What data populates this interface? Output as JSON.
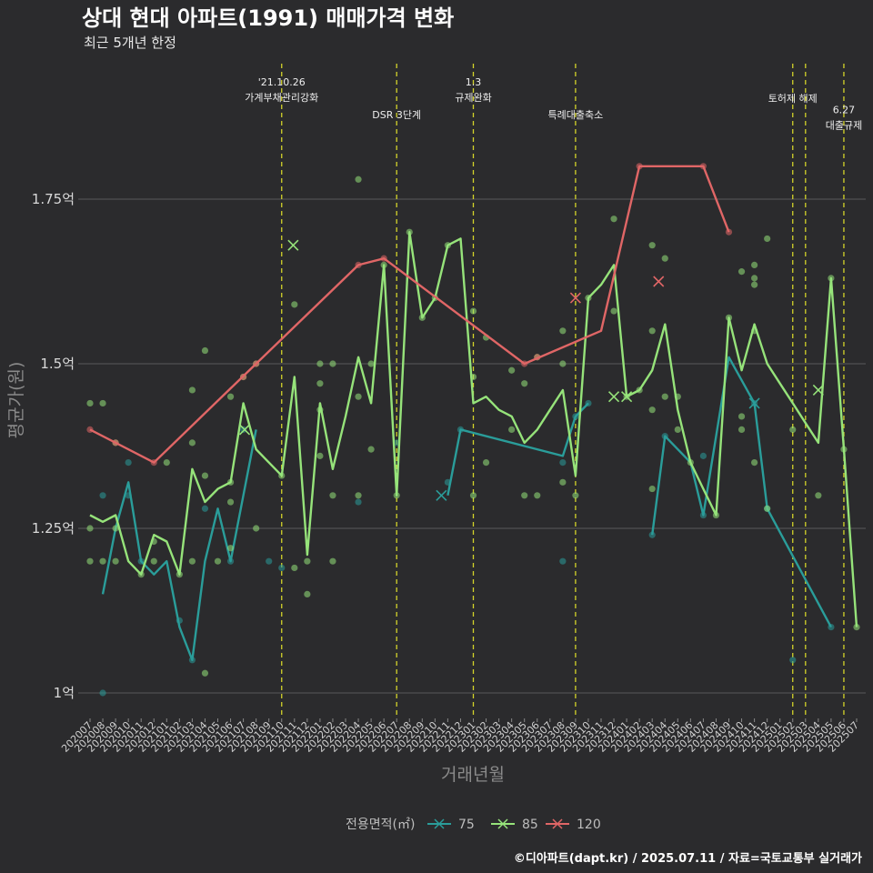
{
  "title": "상대 현대 아파트(1991) 매매가격 변화",
  "subtitle": "최근 5개년 한정",
  "caption": "©디아파트(dapt.kr) / 2025.07.11 / 자료=국토교통부 실거래가",
  "chart_data": {
    "type": "line",
    "xlabel": "거래년월",
    "ylabel": "평균가(원)",
    "ylim": [
      0.96,
      1.86
    ],
    "yticks": [
      1.0,
      1.25,
      1.5,
      1.75
    ],
    "ytick_labels": [
      "1억",
      "1.25억",
      "1.5억",
      "1.75억"
    ],
    "grid": true,
    "legend_position": "bottom",
    "legend_title": "전용면적(㎡)",
    "categories": [
      "202007",
      "202008",
      "202009",
      "202010",
      "202011",
      "202012",
      "202101",
      "202102",
      "202103",
      "202104",
      "202105",
      "202106",
      "202107",
      "202108",
      "202109",
      "202110",
      "202111",
      "202112",
      "202201",
      "202202",
      "202203",
      "202204",
      "202205",
      "202206",
      "202207",
      "202208",
      "202209",
      "202210",
      "202211",
      "202212",
      "202301",
      "202302",
      "202303",
      "202304",
      "202305",
      "202306",
      "202307",
      "202308",
      "202309",
      "202310",
      "202311",
      "202312",
      "202401",
      "202402",
      "202403",
      "202404",
      "202405",
      "202406",
      "202407",
      "202408",
      "202409",
      "202410",
      "202411",
      "202412",
      "202501",
      "202502",
      "202503",
      "202504",
      "202505",
      "202506",
      "202507"
    ],
    "series": [
      {
        "name": "75",
        "color": "#2a9d9a",
        "line": [
          [
            0,
            null
          ],
          [
            1,
            1.15
          ],
          [
            2,
            1.25
          ],
          [
            3,
            1.32
          ],
          [
            4,
            1.2
          ],
          [
            5,
            1.18
          ],
          [
            6,
            1.2
          ],
          [
            7,
            1.1
          ],
          [
            8,
            1.05
          ],
          [
            9,
            1.2
          ],
          [
            10,
            1.28
          ],
          [
            11,
            1.2
          ],
          [
            12,
            1.3
          ],
          [
            13,
            1.4
          ],
          [
            14,
            null
          ],
          [
            15,
            null
          ],
          [
            16,
            1.21
          ],
          [
            17,
            null
          ],
          [
            18,
            null
          ],
          [
            19,
            null
          ],
          [
            20,
            null
          ],
          [
            21,
            1.29
          ],
          [
            22,
            null
          ],
          [
            23,
            null
          ],
          [
            24,
            1.38
          ],
          [
            25,
            null
          ],
          [
            26,
            null
          ],
          [
            27,
            null
          ],
          [
            28,
            1.3
          ],
          [
            29,
            1.4
          ],
          [
            37,
            1.36
          ],
          [
            38,
            1.42
          ],
          [
            39,
            1.44
          ],
          [
            43,
            null
          ],
          [
            44,
            1.24
          ],
          [
            45,
            1.39
          ],
          [
            47,
            1.35
          ],
          [
            48,
            1.27
          ],
          [
            50,
            1.51
          ],
          [
            52,
            1.44
          ],
          [
            53,
            1.28
          ],
          [
            58,
            1.1
          ]
        ],
        "points": [
          [
            1,
            1.3
          ],
          [
            1,
            1.0
          ],
          [
            3,
            1.35
          ],
          [
            3,
            1.3
          ],
          [
            4,
            1.2
          ],
          [
            7,
            1.11
          ],
          [
            8,
            1.05
          ],
          [
            9,
            1.28
          ],
          [
            11,
            1.2
          ],
          [
            12,
            1.4
          ],
          [
            14,
            1.2
          ],
          [
            15,
            1.19
          ],
          [
            21,
            1.29
          ],
          [
            24,
            1.38
          ],
          [
            28,
            1.32
          ],
          [
            29,
            1.4
          ],
          [
            37,
            1.2
          ],
          [
            37,
            1.35
          ],
          [
            38,
            1.42
          ],
          [
            39,
            1.44
          ],
          [
            44,
            1.24
          ],
          [
            45,
            1.39
          ],
          [
            48,
            1.27
          ],
          [
            48,
            1.36
          ],
          [
            52,
            1.44
          ],
          [
            53,
            1.28
          ],
          [
            55,
            1.05
          ],
          [
            58,
            1.1
          ]
        ],
        "crosses": [
          [
            27.5,
            1.3
          ],
          [
            52,
            1.44
          ]
        ]
      },
      {
        "name": "85",
        "color": "#96e37a",
        "line": [
          [
            0,
            1.27
          ],
          [
            1,
            1.26
          ],
          [
            2,
            1.27
          ],
          [
            3,
            1.2
          ],
          [
            4,
            1.18
          ],
          [
            5,
            1.24
          ],
          [
            6,
            1.23
          ],
          [
            7,
            1.18
          ],
          [
            8,
            1.34
          ],
          [
            9,
            1.29
          ],
          [
            10,
            1.31
          ],
          [
            11,
            1.32
          ],
          [
            12,
            1.44
          ],
          [
            13,
            1.37
          ],
          [
            14,
            1.35
          ],
          [
            15,
            1.33
          ],
          [
            16,
            1.48
          ],
          [
            17,
            1.21
          ],
          [
            18,
            1.44
          ],
          [
            19,
            1.34
          ],
          [
            20,
            1.42
          ],
          [
            21,
            1.51
          ],
          [
            22,
            1.44
          ],
          [
            23,
            1.65
          ],
          [
            24,
            1.3
          ],
          [
            25,
            1.7
          ],
          [
            26,
            1.57
          ],
          [
            27,
            1.6
          ],
          [
            28,
            1.68
          ],
          [
            29,
            1.69
          ],
          [
            30,
            1.44
          ],
          [
            31,
            1.45
          ],
          [
            32,
            1.43
          ],
          [
            33,
            1.42
          ],
          [
            34,
            1.38
          ],
          [
            35,
            1.4
          ],
          [
            36,
            1.43
          ],
          [
            37,
            1.46
          ],
          [
            38,
            1.33
          ],
          [
            39,
            1.6
          ],
          [
            40,
            1.62
          ],
          [
            41,
            1.65
          ],
          [
            42,
            1.45
          ],
          [
            43,
            1.46
          ],
          [
            44,
            1.49
          ],
          [
            45,
            1.56
          ],
          [
            46,
            1.43
          ],
          [
            47,
            1.35
          ],
          [
            48,
            1.31
          ],
          [
            49,
            1.27
          ],
          [
            50,
            1.57
          ],
          [
            51,
            1.49
          ],
          [
            52,
            1.56
          ],
          [
            53,
            1.5
          ],
          [
            54,
            1.47
          ],
          [
            55,
            1.44
          ],
          [
            56,
            1.41
          ],
          [
            57,
            1.38
          ],
          [
            58,
            1.63
          ],
          [
            59,
            1.37
          ],
          [
            60,
            1.1
          ]
        ],
        "points": [
          [
            0,
            1.44
          ],
          [
            0,
            1.25
          ],
          [
            0,
            1.2
          ],
          [
            1,
            1.44
          ],
          [
            1,
            1.2
          ],
          [
            2,
            1.2
          ],
          [
            2,
            1.25
          ],
          [
            2,
            1.38
          ],
          [
            4,
            1.18
          ],
          [
            5,
            1.23
          ],
          [
            5,
            1.2
          ],
          [
            6,
            1.35
          ],
          [
            7,
            1.18
          ],
          [
            8,
            1.46
          ],
          [
            8,
            1.38
          ],
          [
            8,
            1.2
          ],
          [
            9,
            1.52
          ],
          [
            9,
            1.33
          ],
          [
            9,
            1.03
          ],
          [
            10,
            1.2
          ],
          [
            11,
            1.45
          ],
          [
            11,
            1.32
          ],
          [
            11,
            1.22
          ],
          [
            11,
            1.29
          ],
          [
            12,
            1.48
          ],
          [
            13,
            1.5
          ],
          [
            13,
            1.25
          ],
          [
            15,
            1.33
          ],
          [
            16,
            1.59
          ],
          [
            16,
            1.19
          ],
          [
            17,
            1.2
          ],
          [
            17,
            1.15
          ],
          [
            18,
            1.5
          ],
          [
            18,
            1.47
          ],
          [
            18,
            1.43
          ],
          [
            18,
            1.36
          ],
          [
            19,
            1.3
          ],
          [
            19,
            1.2
          ],
          [
            19,
            1.5
          ],
          [
            21,
            1.45
          ],
          [
            21,
            1.3
          ],
          [
            21,
            1.78
          ],
          [
            22,
            1.5
          ],
          [
            22,
            1.37
          ],
          [
            23,
            1.65
          ],
          [
            24,
            1.3
          ],
          [
            25,
            1.7
          ],
          [
            26,
            1.57
          ],
          [
            27,
            1.6
          ],
          [
            28,
            1.68
          ],
          [
            30,
            1.58
          ],
          [
            30,
            1.48
          ],
          [
            30,
            1.3
          ],
          [
            31,
            1.35
          ],
          [
            31,
            1.54
          ],
          [
            33,
            1.49
          ],
          [
            33,
            1.4
          ],
          [
            34,
            1.47
          ],
          [
            34,
            1.3
          ],
          [
            35,
            1.51
          ],
          [
            35,
            1.3
          ],
          [
            37,
            1.55
          ],
          [
            37,
            1.5
          ],
          [
            37,
            1.32
          ],
          [
            38,
            1.3
          ],
          [
            39,
            1.6
          ],
          [
            41,
            1.72
          ],
          [
            41,
            1.58
          ],
          [
            42,
            1.45
          ],
          [
            43,
            1.46
          ],
          [
            44,
            1.68
          ],
          [
            44,
            1.55
          ],
          [
            44,
            1.43
          ],
          [
            44,
            1.31
          ],
          [
            45,
            1.66
          ],
          [
            45,
            1.45
          ],
          [
            46,
            1.45
          ],
          [
            46,
            1.4
          ],
          [
            47,
            1.35
          ],
          [
            49,
            1.27
          ],
          [
            50,
            1.57
          ],
          [
            51,
            1.64
          ],
          [
            51,
            1.42
          ],
          [
            51,
            1.4
          ],
          [
            52,
            1.65
          ],
          [
            52,
            1.63
          ],
          [
            52,
            1.62
          ],
          [
            52,
            1.55
          ],
          [
            52,
            1.35
          ],
          [
            53,
            1.69
          ],
          [
            53,
            1.28
          ],
          [
            55,
            1.4
          ],
          [
            57,
            1.3
          ],
          [
            58,
            1.63
          ],
          [
            59,
            1.37
          ],
          [
            60,
            1.1
          ]
        ],
        "crosses": [
          [
            15.9,
            1.68
          ],
          [
            12.1,
            1.4
          ],
          [
            41,
            1.45
          ],
          [
            42,
            1.45
          ],
          [
            57,
            1.46
          ]
        ]
      },
      {
        "name": "120",
        "color": "#e06666",
        "line": [
          [
            0,
            1.4
          ],
          [
            5,
            1.35
          ],
          [
            13,
            1.5
          ],
          [
            21,
            1.65
          ],
          [
            23,
            1.66
          ],
          [
            34,
            1.5
          ],
          [
            40,
            1.55
          ],
          [
            43,
            1.8
          ],
          [
            48,
            1.8
          ],
          [
            50,
            1.7
          ]
        ],
        "points": [
          [
            0,
            1.4
          ],
          [
            2,
            1.38
          ],
          [
            5,
            1.35
          ],
          [
            12,
            1.48
          ],
          [
            13,
            1.5
          ],
          [
            21,
            1.65
          ],
          [
            23,
            1.66
          ],
          [
            34,
            1.5
          ],
          [
            35,
            1.51
          ],
          [
            43,
            1.8
          ],
          [
            48,
            1.8
          ],
          [
            50,
            1.7
          ]
        ],
        "crosses": [
          [
            38,
            1.6
          ],
          [
            44.5,
            1.625
          ]
        ]
      }
    ],
    "events": [
      {
        "x": 15,
        "lines": [
          "'21.10.26",
          "가계부채관리강화"
        ],
        "row": 0
      },
      {
        "x": 24,
        "lines": [
          "DSR 3단계"
        ],
        "row": 2
      },
      {
        "x": 30,
        "lines": [
          "1.3",
          "규제완화"
        ],
        "row": 0
      },
      {
        "x": 38,
        "lines": [
          "특례대출축소"
        ],
        "row": 2
      },
      {
        "x": 55,
        "lines": [
          "토허제 해제"
        ],
        "row": 1
      },
      {
        "x": 56,
        "lines": [],
        "row": 1
      },
      {
        "x": 59,
        "lines": [
          "6.27",
          "대출규제"
        ],
        "row": 1.7
      }
    ]
  }
}
